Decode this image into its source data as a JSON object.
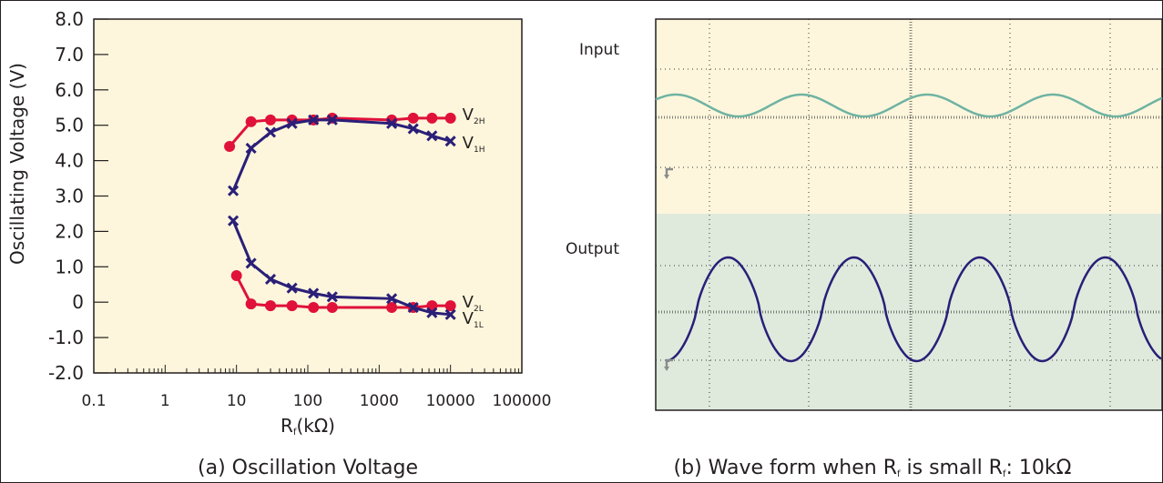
{
  "colors": {
    "plot_bg": "#fdf6dc",
    "output_bg": "#dfeadd",
    "red_series": "#e0123a",
    "blue_series": "#2a1f78",
    "input_wave": "#6fb3a2",
    "output_wave": "#2a1f78"
  },
  "chart_data": [
    {
      "type": "line",
      "caption": "(a) Oscillation Voltage",
      "ylabel": "Oscillating Voltage (V)",
      "xlabel": {
        "main": "R",
        "sub": "f",
        "unit": "(kΩ)"
      },
      "xscale": "log",
      "xlim": [
        0.1,
        100000
      ],
      "ylim": [
        -2.0,
        8.0
      ],
      "yticks": [
        "8.0",
        "7.0",
        "6.0",
        "5.0",
        "4.0",
        "3.0",
        "2.0",
        "1.0",
        "0",
        "-1.0",
        "-2.0"
      ],
      "xticks": [
        "0.1",
        "1",
        "10",
        "100",
        "1000",
        "10000",
        "100000"
      ],
      "series": [
        {
          "name": "V2H",
          "label_main": "V",
          "label_sub": "2H",
          "marker": "circle",
          "color": "red",
          "x": [
            8,
            16,
            30,
            60,
            120,
            220,
            1500,
            3000,
            5500,
            10000
          ],
          "y": [
            4.4,
            5.1,
            5.15,
            5.15,
            5.15,
            5.2,
            5.15,
            5.2,
            5.2,
            5.2
          ]
        },
        {
          "name": "V1H",
          "label_main": "V",
          "label_sub": "1H",
          "marker": "x",
          "color": "blue",
          "x": [
            9,
            16,
            30,
            60,
            120,
            220,
            1500,
            3000,
            5500,
            10000
          ],
          "y": [
            3.15,
            4.35,
            4.8,
            5.05,
            5.15,
            5.15,
            5.05,
            4.9,
            4.7,
            4.55
          ]
        },
        {
          "name": "V2L",
          "label_main": "V",
          "label_sub": "2L",
          "marker": "circle",
          "color": "red",
          "x": [
            10,
            16,
            30,
            60,
            120,
            220,
            1500,
            3000,
            5500,
            10000
          ],
          "y": [
            0.75,
            -0.05,
            -0.1,
            -0.1,
            -0.15,
            -0.15,
            -0.15,
            -0.15,
            -0.1,
            -0.1
          ]
        },
        {
          "name": "V1L",
          "label_main": "V",
          "label_sub": "1L",
          "marker": "x",
          "color": "blue",
          "x": [
            9,
            16,
            30,
            60,
            120,
            220,
            1500,
            3000,
            5500,
            10000
          ],
          "y": [
            2.3,
            1.1,
            0.65,
            0.4,
            0.25,
            0.15,
            0.1,
            -0.15,
            -0.3,
            -0.35
          ]
        }
      ]
    },
    {
      "type": "line",
      "caption": {
        "prefix": "(b) Wave form when R",
        "sub1": "f",
        "mid": " is small R",
        "sub2": "f",
        "suffix": ": 10kΩ"
      },
      "traces": [
        {
          "name": "Input",
          "cycles": 4,
          "level": "low-amplitude"
        },
        {
          "name": "Output",
          "cycles": 4,
          "level": "high-amplitude"
        }
      ]
    }
  ]
}
